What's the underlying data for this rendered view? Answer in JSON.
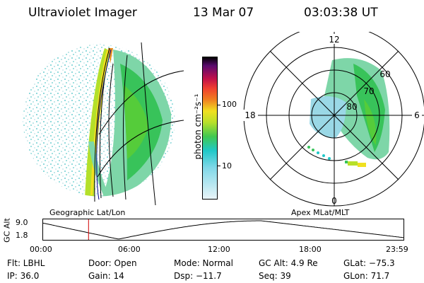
{
  "header": {
    "instrument": "Ultraviolet Imager",
    "date": "13 Mar 07",
    "time": "03:03:38 UT"
  },
  "colorbar": {
    "unit_label": "photon cm⁻²s⁻¹",
    "ticks": [
      {
        "label": "100",
        "value": 100
      },
      {
        "label": "10",
        "value": 10
      }
    ]
  },
  "polar": {
    "mlt_labels": {
      "top": "12",
      "left": "18",
      "right": "6",
      "bottom": "0"
    },
    "lat_labels": [
      "60",
      "70",
      "80"
    ]
  },
  "timeline": {
    "left_caption": "Geographic Lat/Lon",
    "right_caption": "Apex MLat/MLT",
    "ylabel": "GC Alt",
    "y_ticks": [
      "9.0",
      "1.8"
    ],
    "x_ticks": [
      "00:00",
      "06:00",
      "12:00",
      "18:00",
      "23:59"
    ],
    "current_time_hours": 3.06
  },
  "info": {
    "filter": "Flt: LBHL",
    "ip": "IP: 36.0",
    "door": "Door: Open",
    "gain": "Gain: 14",
    "mode": "Mode: Normal",
    "dsp": "Dsp:  −11.7",
    "gc_alt": "GC Alt: 4.9 Re",
    "seq": "Seq: 39",
    "glat": "GLat:  −75.3",
    "glon": "GLon:  71.7"
  }
}
